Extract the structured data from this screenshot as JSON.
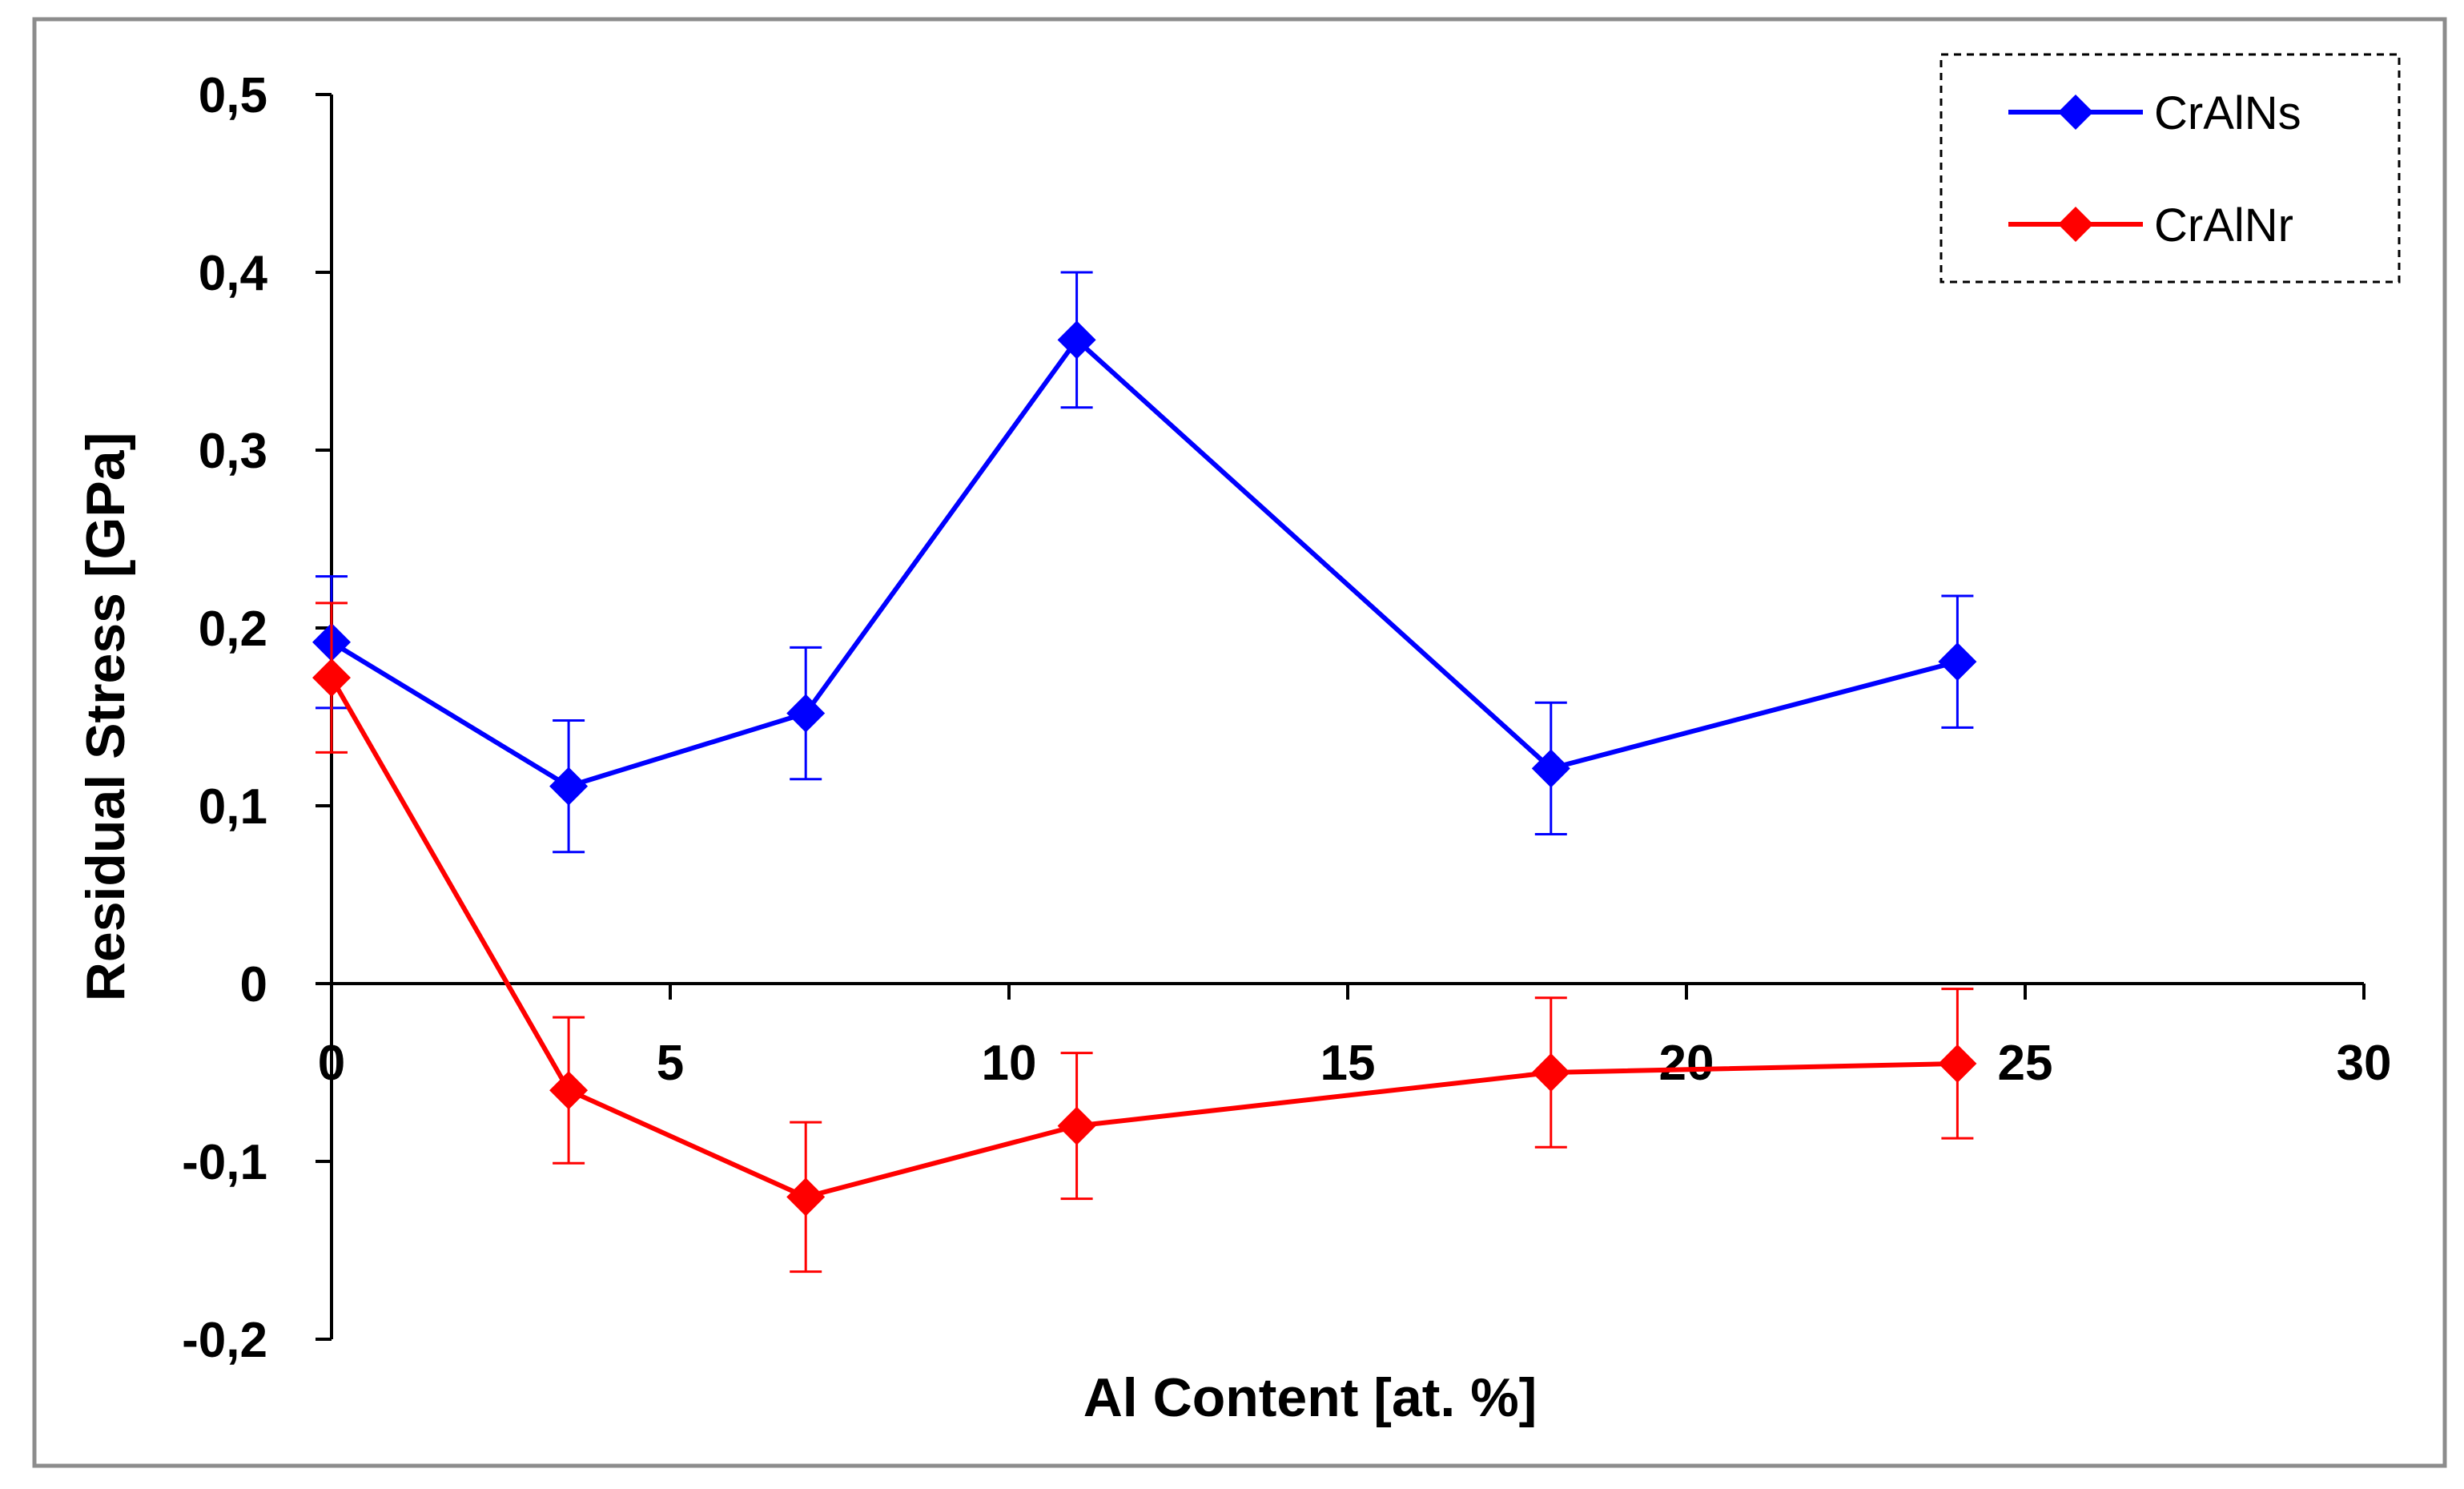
{
  "chart_data": {
    "type": "line",
    "xlabel": "Al Content [at. %]",
    "ylabel": "Residual Stress [GPa]",
    "xlim": [
      0,
      30
    ],
    "ylim": [
      -0.2,
      0.5
    ],
    "x_ticks": [
      0,
      5,
      10,
      15,
      20,
      25,
      30
    ],
    "x_tick_labels": [
      "0",
      "5",
      "10",
      "15",
      "20",
      "25",
      "30"
    ],
    "y_ticks": [
      -0.2,
      -0.1,
      0,
      0.1,
      0.2,
      0.3,
      0.4,
      0.5
    ],
    "y_tick_labels": [
      "-0,2",
      "-0,1",
      "0",
      "0,1",
      "0,2",
      "0,3",
      "0,4",
      "0,5"
    ],
    "grid": false,
    "legend_position": "top-right",
    "legend_border": "dashed",
    "marker": "diamond",
    "series": [
      {
        "name": "CrAlNs",
        "color": "#0000ff",
        "x": [
          0,
          3.5,
          7,
          11,
          18,
          24
        ],
        "y": [
          0.192,
          0.111,
          0.152,
          0.362,
          0.121,
          0.181
        ],
        "error": [
          0.037,
          0.037,
          0.037,
          0.038,
          0.037,
          0.037
        ]
      },
      {
        "name": "CrAlNr",
        "color": "#ff0000",
        "x": [
          0,
          3.5,
          7,
          11,
          18,
          24
        ],
        "y": [
          0.172,
          -0.06,
          -0.12,
          -0.08,
          -0.05,
          -0.045
        ],
        "error": [
          0.042,
          0.041,
          0.042,
          0.041,
          0.042,
          0.042
        ]
      }
    ]
  }
}
